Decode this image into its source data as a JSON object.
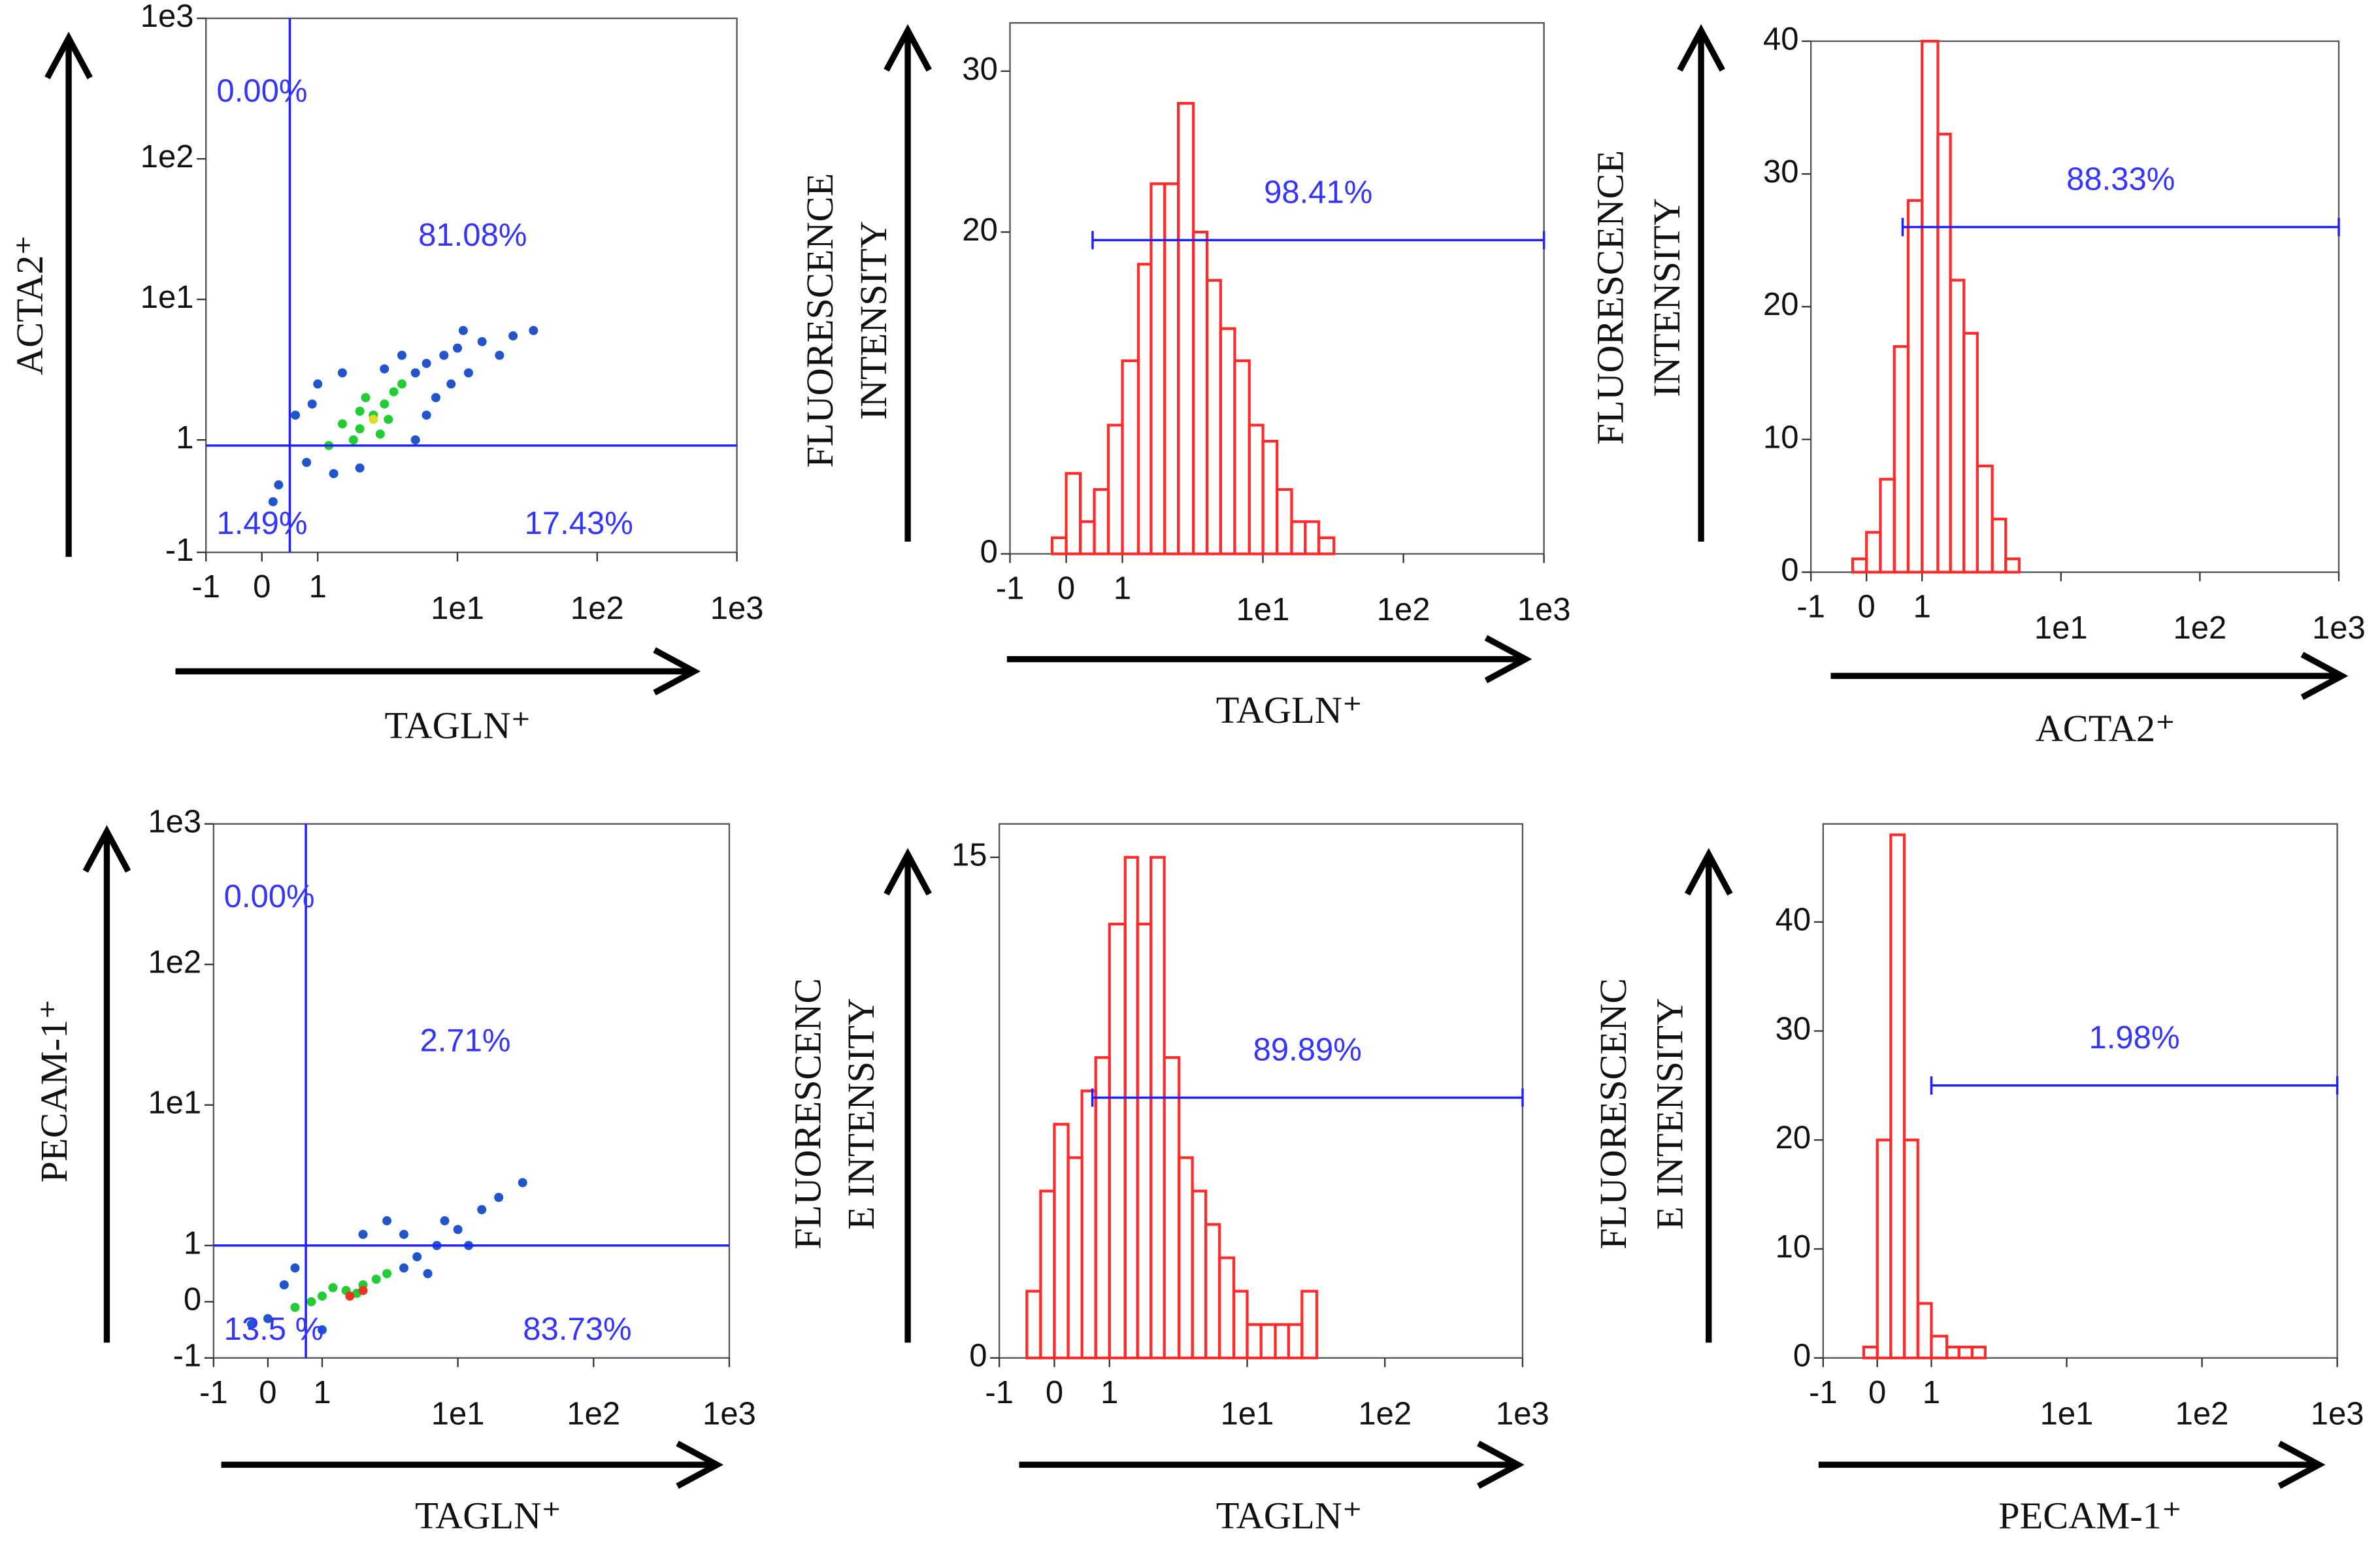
{
  "chart_data": [
    {
      "type": "scatter",
      "xlabel": "TAGLN⁺",
      "ylabel": [
        "ACTA2⁺"
      ],
      "xscale": "symlog",
      "yscale": "symlog",
      "xlim": [
        -1,
        1000
      ],
      "ylim": [
        -1,
        1000
      ],
      "xticks": [
        -1,
        0,
        1,
        {
          "value": 10,
          "label": "1e1"
        },
        {
          "value": 100,
          "label": "1e2"
        },
        {
          "value": 1000,
          "label": "1e3"
        }
      ],
      "yticks": [
        -1,
        1,
        {
          "value": 10,
          "label": "1e1"
        },
        {
          "value": 100,
          "label": "1e2"
        },
        {
          "value": 1000,
          "label": "1e3"
        }
      ],
      "gate": {
        "x": 0.5,
        "y": 0.9,
        "color": "#2020ff"
      },
      "quadrant_labels": [
        "0.00%",
        "81.08%",
        "1.49%",
        "17.43%"
      ],
      "x": [
        2,
        2.5,
        3,
        1.8,
        2.2,
        3.5,
        1.5,
        2.8,
        4,
        2,
        1.2,
        3.2,
        0.8,
        1,
        5,
        6,
        8,
        10,
        15,
        25,
        35,
        1.3,
        0.6,
        7,
        12,
        4,
        0.3,
        5,
        9,
        20,
        3,
        1.5,
        0.9,
        6,
        2,
        0.2,
        11,
        2.5
      ],
      "y": [
        1.2,
        1.5,
        1.8,
        1,
        2,
        2.2,
        1.3,
        1.1,
        2.5,
        1.6,
        0.9,
        1.4,
        0.6,
        2.5,
        3,
        3.5,
        4,
        4.5,
        5,
        5.5,
        6,
        0.4,
        1.5,
        2,
        3,
        4,
        0.2,
        1,
        2.5,
        4,
        3.2,
        3,
        1.8,
        1.5,
        0.5,
        -0.1,
        6,
        1.4
      ],
      "colors": [
        "#22cc33",
        "#22cc33",
        "#22cc33",
        "#22cc33",
        "#22cc33",
        "#22cc33",
        "#22cc33",
        "#22cc33",
        "#22cc33",
        "#22cc33",
        "#22cc33",
        "#22cc33",
        "#2255cc",
        "#2255cc",
        "#2255cc",
        "#2255cc",
        "#2255cc",
        "#2255cc",
        "#2255cc",
        "#2255cc",
        "#2255cc",
        "#2255cc",
        "#2255cc",
        "#2255cc",
        "#2255cc",
        "#2255cc",
        "#2255cc",
        "#2255cc",
        "#2255cc",
        "#2255cc",
        "#2255cc",
        "#2255cc",
        "#2255cc",
        "#2255cc",
        "#2255cc",
        "#2255cc",
        "#2255cc",
        "#dddd22"
      ]
    },
    {
      "type": "histogram",
      "xlabel": "TAGLN⁺",
      "ylabel": [
        "FLUORESCENCE",
        "INTENSITY"
      ],
      "xscale": "symlog",
      "xlim": [
        -1,
        1000
      ],
      "ylim": [
        0,
        33
      ],
      "xticks": [
        -1,
        0,
        1,
        {
          "value": 10,
          "label": "1e1"
        },
        {
          "value": 100,
          "label": "1e2"
        },
        {
          "value": 1000,
          "label": "1e3"
        }
      ],
      "yticks": [
        0,
        20,
        30
      ],
      "color": "#ff2a2a",
      "bins": [
        -0.5,
        -0.25,
        0,
        0.25,
        0.5,
        0.75,
        1,
        1.3,
        1.6,
        2,
        2.5,
        3.2,
        4,
        5,
        6.3,
        8,
        10,
        12.6,
        16,
        20,
        25,
        32,
        40
      ],
      "values": [
        0,
        1,
        5,
        2,
        4,
        8,
        12,
        18,
        23,
        23,
        28,
        20,
        17,
        14,
        12,
        8,
        7,
        4,
        2,
        2,
        1,
        0
      ],
      "gate": {
        "range": [
          0.47,
          1000
        ],
        "level": 19.5,
        "label": "98.41%",
        "color": "#2020ff"
      }
    },
    {
      "type": "histogram",
      "xlabel": "ACTA2⁺",
      "ylabel": [
        "FLUORESCENCE",
        "INTENSITY"
      ],
      "xscale": "symlog",
      "xlim": [
        -1,
        1000
      ],
      "ylim": [
        0,
        40
      ],
      "xticks": [
        -1,
        0,
        1,
        {
          "value": 10,
          "label": "1e1"
        },
        {
          "value": 100,
          "label": "1e2"
        },
        {
          "value": 1000,
          "label": "1e3"
        }
      ],
      "yticks": [
        0,
        10,
        20,
        30,
        40
      ],
      "color": "#ff2a2a",
      "bins": [
        -0.5,
        -0.25,
        0,
        0.25,
        0.5,
        0.75,
        1,
        1.3,
        1.6,
        2,
        2.5,
        3.2,
        4,
        5,
        6.3,
        8,
        10,
        12.6,
        16,
        20,
        25,
        32,
        40
      ],
      "values": [
        0,
        1,
        3,
        7,
        17,
        28,
        40,
        33,
        22,
        18,
        8,
        4,
        1,
        0,
        0,
        0,
        0,
        0,
        0,
        0,
        0,
        0
      ],
      "gate": {
        "range": [
          0.65,
          1000
        ],
        "level": 26,
        "label": "88.33%",
        "color": "#2020ff"
      }
    },
    {
      "type": "scatter",
      "xlabel": "TAGLN⁺",
      "ylabel": [
        "PECAM-1⁺"
      ],
      "xscale": "symlog",
      "yscale": "symlog",
      "xlim": [
        -1,
        1000
      ],
      "ylim": [
        -1,
        1000
      ],
      "xticks": [
        -1,
        0,
        1,
        {
          "value": 10,
          "label": "1e1"
        },
        {
          "value": 100,
          "label": "1e2"
        },
        {
          "value": 1000,
          "label": "1e3"
        }
      ],
      "yticks": [
        -1,
        0,
        1,
        {
          "value": 10,
          "label": "1e1"
        },
        {
          "value": 100,
          "label": "1e2"
        },
        {
          "value": 1000,
          "label": "1e3"
        }
      ],
      "gate": {
        "x": 0.7,
        "y": 1,
        "color": "#2020ff"
      },
      "quadrant_labels": [
        "0.00%",
        "2.71%",
        "13.5 %",
        "83.73%"
      ],
      "x": [
        1,
        1.5,
        2,
        0.8,
        1.2,
        2.5,
        0.5,
        3,
        1.8,
        0,
        -0.3,
        0.3,
        4,
        5,
        7,
        10,
        15,
        20,
        30,
        3,
        2,
        6,
        8,
        0.5,
        12,
        1,
        4,
        1.6,
        2
      ],
      "y": [
        0.1,
        0.2,
        0.3,
        0,
        0.25,
        0.4,
        -0.1,
        0.5,
        0.15,
        -0.3,
        -0.4,
        0.3,
        0.6,
        0.8,
        1,
        1.3,
        1.8,
        2.2,
        2.8,
        1.5,
        1.2,
        0.5,
        1.5,
        0.6,
        1,
        -0.5,
        1.2,
        0.1,
        0.2
      ],
      "colors": [
        "#22cc33",
        "#22cc33",
        "#22cc33",
        "#22cc33",
        "#22cc33",
        "#22cc33",
        "#22cc33",
        "#22cc33",
        "#22cc33",
        "#2255cc",
        "#2255cc",
        "#2255cc",
        "#2255cc",
        "#2255cc",
        "#2255cc",
        "#2255cc",
        "#2255cc",
        "#2255cc",
        "#2255cc",
        "#2255cc",
        "#2255cc",
        "#2255cc",
        "#2255cc",
        "#2255cc",
        "#2255cc",
        "#2255cc",
        "#2255cc",
        "#ee3322",
        "#ee3322"
      ]
    },
    {
      "type": "histogram",
      "xlabel": "TAGLN⁺",
      "ylabel": [
        "FLUORESCENC",
        "E INTENSITY"
      ],
      "xscale": "symlog",
      "xlim": [
        -1,
        1000
      ],
      "ylim": [
        0,
        16
      ],
      "xticks": [
        -1,
        0,
        1,
        {
          "value": 10,
          "label": "1e1"
        },
        {
          "value": 100,
          "label": "1e2"
        },
        {
          "value": 1000,
          "label": "1e3"
        }
      ],
      "yticks": [
        0,
        15
      ],
      "color": "#ff2a2a",
      "bins": [
        -0.5,
        -0.25,
        0,
        0.25,
        0.5,
        0.75,
        1,
        1.3,
        1.6,
        2,
        2.5,
        3.2,
        4,
        5,
        6.3,
        8,
        10,
        12.6,
        16,
        20,
        25,
        32,
        40
      ],
      "values": [
        2,
        5,
        7,
        6,
        8,
        9,
        13,
        15,
        13,
        15,
        9,
        6,
        5,
        4,
        3,
        2,
        1,
        1,
        1,
        1,
        2,
        0
      ],
      "gate": {
        "range": [
          0.69,
          1000
        ],
        "level": 7.8,
        "label": "89.89%",
        "color": "#2020ff"
      }
    },
    {
      "type": "histogram",
      "xlabel": "PECAM-1⁺",
      "ylabel": [
        "FLUORESCENC",
        "E INTENSITY"
      ],
      "xscale": "symlog",
      "xlim": [
        -1,
        1000
      ],
      "ylim": [
        0,
        49
      ],
      "xticks": [
        -1,
        0,
        1,
        {
          "value": 10,
          "label": "1e1"
        },
        {
          "value": 100,
          "label": "1e2"
        },
        {
          "value": 1000,
          "label": "1e3"
        }
      ],
      "yticks": [
        0,
        10,
        20,
        30,
        40
      ],
      "color": "#ff2a2a",
      "bins": [
        -0.5,
        -0.25,
        0,
        0.25,
        0.5,
        0.75,
        1,
        1.3,
        1.6,
        2,
        2.5,
        3.2,
        4,
        5,
        6.3,
        8,
        10,
        12.6,
        16,
        20,
        25,
        32,
        40
      ],
      "values": [
        0,
        1,
        20,
        48,
        20,
        5,
        2,
        1,
        1,
        1,
        0,
        0,
        0,
        0,
        0,
        0,
        0,
        0,
        0,
        0,
        0,
        0
      ],
      "gate": {
        "range": [
          1,
          1000
        ],
        "level": 25,
        "label": "1.98%",
        "color": "#2020ff"
      }
    }
  ]
}
